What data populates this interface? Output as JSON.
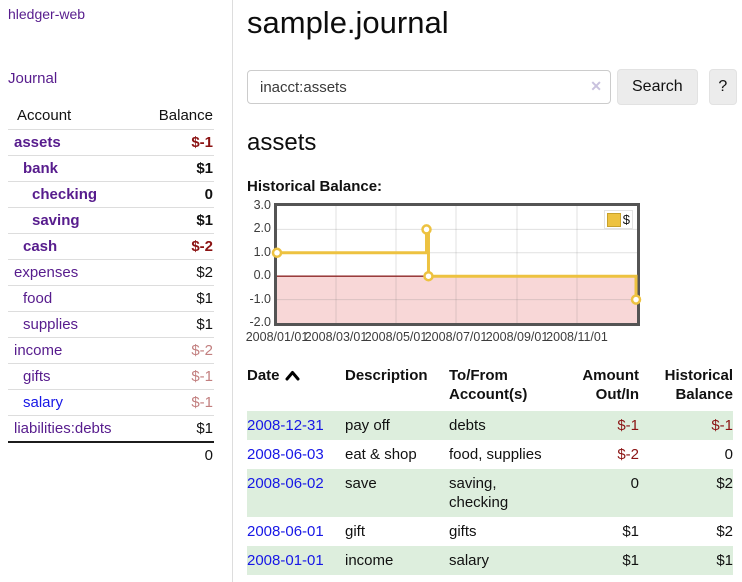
{
  "colors": {
    "link_purple": "#571c8d",
    "link_blue": "#1717e6",
    "negative_strong": "#8b1313",
    "negative_soft": "#c27f7f",
    "row_stripe_green": "#ddeedd",
    "chart_series_yellow": "#edc240",
    "chart_negative_fill": "#f8d7d7",
    "chart_zero_line": "#8d2626",
    "button_gray": "#ececec"
  },
  "sidebar": {
    "brand": "hledger-web",
    "nav_journal": "Journal",
    "accounts_table": {
      "headers": {
        "account": "Account",
        "balance": "Balance"
      },
      "rows": [
        {
          "name": "assets",
          "level": 1,
          "balance": "$-1",
          "bold": true,
          "tone": "neg-strong"
        },
        {
          "name": "bank",
          "level": 2,
          "balance": "$1",
          "bold": true
        },
        {
          "name": "checking",
          "level": 3,
          "balance": "0",
          "bold": true
        },
        {
          "name": "saving",
          "level": 3,
          "balance": "$1",
          "bold": true
        },
        {
          "name": "cash",
          "level": 2,
          "balance": "$-2",
          "bold": true,
          "tone": "neg-strong"
        },
        {
          "name": "expenses",
          "level": 1,
          "balance": "$2"
        },
        {
          "name": "food",
          "level": 2,
          "balance": "$1"
        },
        {
          "name": "supplies",
          "level": 2,
          "balance": "$1"
        },
        {
          "name": "income",
          "level": 1,
          "balance": "$-2",
          "tone": "neg-soft"
        },
        {
          "name": "gifts",
          "level": 2,
          "balance": "$-1",
          "tone": "neg-soft"
        },
        {
          "name": "salary",
          "level": 2,
          "balance": "$-1",
          "tone": "neg-soft",
          "link": "blue"
        },
        {
          "name": "liabilities:debts",
          "level": 1,
          "balance": "$1"
        }
      ],
      "total": "0"
    }
  },
  "main": {
    "title": "sample.journal",
    "search": {
      "value": "inacct:assets",
      "clear_icon": "✕",
      "search_button": "Search",
      "help_button": "?"
    },
    "account_heading": "assets",
    "chart_title": "Historical Balance:"
  },
  "chart_data": {
    "type": "line",
    "step": true,
    "title": "Historical Balance",
    "series": [
      {
        "name": "$",
        "color": "#edc240",
        "points": [
          [
            "2008-01-01",
            1
          ],
          [
            "2008-06-01",
            2
          ],
          [
            "2008-06-03",
            0
          ],
          [
            "2008-12-31",
            -1
          ]
        ]
      }
    ],
    "xlim": [
      "2008-01-01",
      "2009-01-01"
    ],
    "ylim": [
      -2,
      3
    ],
    "yticks": [
      "3.0",
      "2.0",
      "1.0",
      "0.0",
      "-1.0",
      "-2.0"
    ],
    "xticks": [
      "2008/01/01",
      "2008/03/01",
      "2008/05/01",
      "2008/07/01",
      "2008/09/01",
      "2008/11/01"
    ],
    "grid": true,
    "legend_position": "top-right",
    "negative_region_color": "#f8d7d7",
    "zero_line_color": "#8d2626"
  },
  "register": {
    "headers": [
      {
        "label": "Date",
        "sorted": "asc"
      },
      {
        "label": "Description"
      },
      {
        "label": "To/From Account(s)"
      },
      {
        "label": "Amount Out/In"
      },
      {
        "label": "Historical Balance"
      }
    ],
    "rows": [
      {
        "date": "2008-12-31",
        "description": "pay off",
        "accounts": "debts",
        "amount": "$-1",
        "amount_tone": "neg-strong",
        "balance": "$-1",
        "balance_tone": "neg-strong"
      },
      {
        "date": "2008-06-03",
        "description": "eat & shop",
        "accounts": "food, supplies",
        "amount": "$-2",
        "amount_tone": "neg-strong",
        "balance": "0"
      },
      {
        "date": "2008-06-02",
        "description": "save",
        "accounts": "saving, checking",
        "amount": "0",
        "balance": "$2"
      },
      {
        "date": "2008-06-01",
        "description": "gift",
        "accounts": "gifts",
        "amount": "$1",
        "balance": "$2"
      },
      {
        "date": "2008-01-01",
        "description": "income",
        "accounts": "salary",
        "amount": "$1",
        "balance": "$1"
      }
    ]
  }
}
